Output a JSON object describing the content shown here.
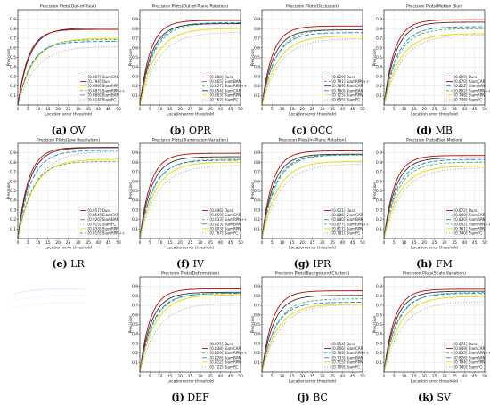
{
  "common": {
    "xlabel": "Location error threshold",
    "ylabel": "Precision",
    "xticks": [
      0,
      5,
      10,
      15,
      20,
      25,
      30,
      35,
      40,
      45,
      50
    ],
    "yticks": [
      0.1,
      0.2,
      0.3,
      0.4,
      0.5,
      0.6,
      0.7,
      0.8,
      0.9
    ],
    "xlim": [
      0,
      50
    ],
    "ylim": [
      0,
      1
    ],
    "grid": true,
    "legend_placement": "bottom-right"
  },
  "series_styles": {
    "Ours": {
      "color": "#c00000",
      "dash": ""
    },
    "SiamCAR": {
      "color": "#333333",
      "dash": ""
    },
    "SiamRPN": {
      "color": "#e6d800",
      "dash": ""
    },
    "SiamRPN++": {
      "color": "#4daf4a",
      "dash": "3,2"
    },
    "SiamBAN": {
      "color": "#2080e0",
      "dash": "5,2"
    },
    "SiamFC": {
      "color": "#999999",
      "dash": "1,2"
    }
  },
  "chart_data": [
    {
      "type": "line",
      "title": "Precision Plots(Out-of-View)",
      "caption_letter": "(a)",
      "caption_name": "OV",
      "legend": [
        "[0.807] SiamCAR",
        "[0.794] Ours",
        "[0.699] SiamRPN",
        "[0.687] SiamRPN++",
        "[0.668] SiamBAN",
        "[0.614] SiamFC"
      ],
      "series": [
        {
          "name": "SiamCAR",
          "final": 0.807
        },
        {
          "name": "Ours",
          "final": 0.794
        },
        {
          "name": "SiamRPN",
          "final": 0.699
        },
        {
          "name": "SiamRPN++",
          "final": 0.687
        },
        {
          "name": "SiamBAN",
          "final": 0.668
        },
        {
          "name": "SiamFC",
          "final": 0.614
        }
      ]
    },
    {
      "type": "line",
      "title": "Precision Plots(Out-of-Plane Rotation)",
      "caption_letter": "(b)",
      "caption_name": "OPR",
      "legend": [
        "[0.888] Ours",
        "[0.865] SiamBAN",
        "[0.857] SiamRPN++",
        "[0.854] SiamCAR",
        "[0.803] SiamRPN",
        "[0.762] SiamFC"
      ],
      "series": [
        {
          "name": "Ours",
          "final": 0.888
        },
        {
          "name": "SiamBAN",
          "final": 0.865
        },
        {
          "name": "SiamRPN++",
          "final": 0.857
        },
        {
          "name": "SiamCAR",
          "final": 0.854
        },
        {
          "name": "SiamRPN",
          "final": 0.803
        },
        {
          "name": "SiamFC",
          "final": 0.762
        }
      ]
    },
    {
      "type": "line",
      "title": "Precision Plots(Occlusion)",
      "caption_letter": "(c)",
      "caption_name": "OCC",
      "legend": [
        "[0.829] Ours",
        "[0.791] SiamRPN++",
        "[0.789] SiamCAR",
        "[0.760] SiamBAN",
        "[0.725] SiamRPN",
        "[0.695] SiamFC"
      ],
      "series": [
        {
          "name": "Ours",
          "final": 0.829
        },
        {
          "name": "SiamRPN++",
          "final": 0.791
        },
        {
          "name": "SiamCAR",
          "final": 0.789
        },
        {
          "name": "SiamBAN",
          "final": 0.76
        },
        {
          "name": "SiamRPN",
          "final": 0.725
        },
        {
          "name": "SiamFC",
          "final": 0.695
        }
      ]
    },
    {
      "type": "line",
      "title": "Precision Plots(Motion Blur)",
      "caption_letter": "(d)",
      "caption_name": "MB",
      "legend": [
        "[0.895] Ours",
        "[0.870] SiamCAR",
        "[0.822] SiamBAN",
        "[0.802] SiamRPN++",
        "[0.748] SiamRPN",
        "[0.736] SiamFC"
      ],
      "series": [
        {
          "name": "Ours",
          "final": 0.895
        },
        {
          "name": "SiamCAR",
          "final": 0.87
        },
        {
          "name": "SiamBAN",
          "final": 0.822
        },
        {
          "name": "SiamRPN++",
          "final": 0.802
        },
        {
          "name": "SiamRPN",
          "final": 0.748
        },
        {
          "name": "SiamFC",
          "final": 0.736
        }
      ]
    },
    {
      "type": "line",
      "title": "Precision Plots(Low Resolution)",
      "caption_letter": "(e)",
      "caption_name": "LR",
      "legend": [
        "[0.957] Ours",
        "[0.954] SiamCAR",
        "[0.926] SiamBAN",
        "[0.915] SiamFC",
        "[0.833] SiamRPN",
        "[0.810] SiamRPN++"
      ],
      "series": [
        {
          "name": "Ours",
          "final": 0.957
        },
        {
          "name": "SiamCAR",
          "final": 0.954
        },
        {
          "name": "SiamBAN",
          "final": 0.926
        },
        {
          "name": "SiamFC",
          "final": 0.915
        },
        {
          "name": "SiamRPN",
          "final": 0.833
        },
        {
          "name": "SiamRPN++",
          "final": 0.81
        }
      ]
    },
    {
      "type": "line",
      "title": "Precision Plots(Illumination Variation)",
      "caption_letter": "(f)",
      "caption_name": "IV",
      "legend": [
        "[0.896] Ours",
        "[0.859] SiamCAR",
        "[0.833] SiamRPN++",
        "[0.823] SiamBAN",
        "[0.803] SiamRPN",
        "[0.767] SiamFC"
      ],
      "series": [
        {
          "name": "Ours",
          "final": 0.896
        },
        {
          "name": "SiamCAR",
          "final": 0.859
        },
        {
          "name": "SiamRPN++",
          "final": 0.833
        },
        {
          "name": "SiamBAN",
          "final": 0.823
        },
        {
          "name": "SiamRPN",
          "final": 0.803
        },
        {
          "name": "SiamFC",
          "final": 0.767
        }
      ]
    },
    {
      "type": "line",
      "title": "Precision Plots(In-Plane Rotation)",
      "caption_letter": "(g)",
      "caption_name": "IPR",
      "legend": [
        "[0.921] Ours",
        "[0.886] SiamCAR",
        "[0.880] SiamBAN",
        "[0.877] SiamRPN++",
        "[0.811] SiamRPN",
        "[0.781] SiamFC"
      ],
      "series": [
        {
          "name": "Ours",
          "final": 0.921
        },
        {
          "name": "SiamCAR",
          "final": 0.886
        },
        {
          "name": "SiamBAN",
          "final": 0.88
        },
        {
          "name": "SiamRPN++",
          "final": 0.877
        },
        {
          "name": "SiamRPN",
          "final": 0.811
        },
        {
          "name": "SiamFC",
          "final": 0.781
        }
      ]
    },
    {
      "type": "line",
      "title": "Precision Plots(Fast Motion)",
      "caption_letter": "(h)",
      "caption_name": "FM",
      "legend": [
        "[0.872] Ours",
        "[0.848] SiamCAR",
        "[0.830] SiamBAN",
        "[0.802] SiamRPN++",
        "[0.761] SiamRPN",
        "[0.740] SiamFC"
      ],
      "series": [
        {
          "name": "Ours",
          "final": 0.872
        },
        {
          "name": "SiamCAR",
          "final": 0.848
        },
        {
          "name": "SiamBAN",
          "final": 0.83
        },
        {
          "name": "SiamRPN++",
          "final": 0.802
        },
        {
          "name": "SiamRPN",
          "final": 0.761
        },
        {
          "name": "SiamFC",
          "final": 0.74
        }
      ]
    },
    {
      "type": "line",
      "title": "Precision Plots(Deformation)",
      "caption_letter": "(i)",
      "caption_name": "DEF",
      "legend": [
        "[0.875] Ours",
        "[0.838] SiamCAR",
        "[0.829] SiamRPN++",
        "[0.826] SiamBAN",
        "[0.812] SiamRPN",
        "[0.722] SiamFC"
      ],
      "series": [
        {
          "name": "Ours",
          "final": 0.875
        },
        {
          "name": "SiamCAR",
          "final": 0.838
        },
        {
          "name": "SiamRPN++",
          "final": 0.829
        },
        {
          "name": "SiamBAN",
          "final": 0.826
        },
        {
          "name": "SiamRPN",
          "final": 0.812
        },
        {
          "name": "SiamFC",
          "final": 0.722
        }
      ]
    },
    {
      "type": "line",
      "title": "Precision Plots(Background Clutters)",
      "caption_letter": "(j)",
      "caption_name": "BC",
      "legend": [
        "[0.854] Ours",
        "[0.806] SiamCAR",
        "[0.769] SiamRPN++",
        "[0.733] SiamBAN",
        "[0.715] SiamRPN",
        "[0.709] SiamFC"
      ],
      "series": [
        {
          "name": "Ours",
          "final": 0.854
        },
        {
          "name": "SiamCAR",
          "final": 0.806
        },
        {
          "name": "SiamRPN++",
          "final": 0.769
        },
        {
          "name": "SiamBAN",
          "final": 0.733
        },
        {
          "name": "SiamRPN",
          "final": 0.715
        },
        {
          "name": "SiamFC",
          "final": 0.709
        }
      ]
    },
    {
      "type": "line",
      "title": "Precision Plots(Scale Variation)",
      "caption_letter": "(k)",
      "caption_name": "SV",
      "legend": [
        "[0.871] Ours",
        "[0.849] SiamCAR",
        "[0.835] SiamRPN++",
        "[0.826] SiamBAN",
        "[0.794] SiamRPN",
        "[0.740] SiamFC"
      ],
      "series": [
        {
          "name": "Ours",
          "final": 0.871
        },
        {
          "name": "SiamCAR",
          "final": 0.849
        },
        {
          "name": "SiamRPN++",
          "final": 0.835
        },
        {
          "name": "SiamBAN",
          "final": 0.826
        },
        {
          "name": "SiamRPN",
          "final": 0.794
        },
        {
          "name": "SiamFC",
          "final": 0.74
        }
      ]
    }
  ]
}
